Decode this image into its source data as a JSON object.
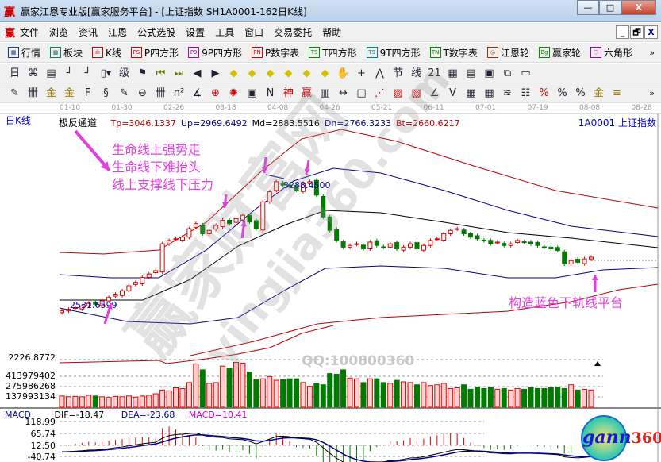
{
  "window": {
    "logo": "赢",
    "title": "赢家江恩专业版[赢家服务平台] - [上证指数  SH1A0001-162日K线]",
    "min": "—",
    "max": "□",
    "close": "X"
  },
  "menu": {
    "logo": "赢",
    "items": [
      "文件",
      "浏览",
      "资讯",
      "江恩",
      "公式选股",
      "设置",
      "工具",
      "窗口",
      "交易委托",
      "帮助"
    ],
    "mdi": [
      "_",
      "🗗",
      "X"
    ]
  },
  "toolbar1": {
    "items": [
      {
        "icon": "quote-table-icon",
        "badge": "▦",
        "label": "行情",
        "color": "#1a3a8a"
      },
      {
        "icon": "sector-icon",
        "badge": "▩",
        "label": "板块",
        "color": "#0a7a6a"
      },
      {
        "icon": "kline-icon",
        "badge": "ılı",
        "label": "K线",
        "color": "#c00"
      },
      {
        "icon": "ps-icon",
        "badge": "PS",
        "label": "P四方形",
        "color": "#c00"
      },
      {
        "icon": "p9-icon",
        "badge": "P9",
        "label": "9P四方形",
        "color": "#a0a"
      },
      {
        "icon": "pn-icon",
        "badge": "PN",
        "label": "P数字表",
        "color": "#c00"
      },
      {
        "icon": "ts-icon",
        "badge": "TS",
        "label": "T四方形",
        "color": "#080"
      },
      {
        "icon": "t9-icon",
        "badge": "T9",
        "label": "9T四方形",
        "color": "#088"
      },
      {
        "icon": "tn-icon",
        "badge": "TN",
        "label": "T数字表",
        "color": "#080"
      },
      {
        "icon": "gann-wheel-icon",
        "badge": "◎",
        "label": "江恩轮",
        "color": "#8a3a00"
      },
      {
        "icon": "winner-wheel-icon",
        "badge": "Bg",
        "label": "赢家轮",
        "color": "#080"
      },
      {
        "icon": "hexagon-icon",
        "badge": "⬡",
        "label": "六角形",
        "color": "#a0a"
      }
    ],
    "more": "»"
  },
  "toolbar2": {
    "items": [
      {
        "icon": "period-day-icon",
        "glyph": "日▾"
      },
      {
        "icon": "overlay-icon",
        "glyph": "⌘"
      },
      {
        "icon": "note-icon",
        "glyph": "▤"
      },
      {
        "icon": "indicator3-icon",
        "glyph": "┘"
      },
      {
        "icon": "indicator9-icon",
        "glyph": "┘"
      },
      {
        "icon": "candle-type-icon",
        "glyph": "▯▾"
      },
      {
        "icon": "extreme-icon",
        "glyph": "级"
      },
      {
        "icon": "flag-icon",
        "glyph": "⚑"
      },
      {
        "icon": "first-icon",
        "glyph": "⏮"
      },
      {
        "icon": "last-icon",
        "glyph": "⏭"
      },
      {
        "icon": "left-icon",
        "glyph": "◀"
      },
      {
        "icon": "right-icon",
        "glyph": "▶"
      },
      {
        "icon": "move-left-icon",
        "glyph": "◆"
      },
      {
        "icon": "move-right-icon",
        "glyph": "◆"
      },
      {
        "icon": "expand-icon",
        "glyph": "◆"
      },
      {
        "icon": "shrink-icon",
        "glyph": "◆"
      },
      {
        "icon": "zoom-in-icon",
        "glyph": "◆"
      },
      {
        "icon": "zoom-out-icon",
        "glyph": "◆"
      },
      {
        "icon": "hand-icon",
        "glyph": "✋"
      },
      {
        "icon": "crosshair-icon",
        "glyph": "+"
      },
      {
        "icon": "line-icon",
        "glyph": "⋀"
      },
      {
        "icon": "festival-icon",
        "glyph": "节"
      },
      {
        "icon": "zone-icon",
        "glyph": "线"
      },
      {
        "icon": "calendar-icon",
        "glyph": "21"
      },
      {
        "icon": "calculator-icon",
        "glyph": "▦"
      },
      {
        "icon": "document-icon",
        "glyph": "▤"
      },
      {
        "icon": "save-icon",
        "glyph": "▣"
      },
      {
        "icon": "network-icon",
        "glyph": "⧉"
      },
      {
        "icon": "computer-icon",
        "glyph": "▭"
      }
    ]
  },
  "toolbar3": {
    "items": [
      {
        "icon": "pen-icon",
        "glyph": "✎"
      },
      {
        "icon": "grid-icon",
        "glyph": "卌"
      },
      {
        "icon": "gold-icon",
        "glyph": "金"
      },
      {
        "icon": "gold2-icon",
        "glyph": "金"
      },
      {
        "icon": "f-icon",
        "glyph": "F"
      },
      {
        "icon": "spiral-icon",
        "glyph": "§"
      },
      {
        "icon": "pen2-icon",
        "glyph": "✎"
      },
      {
        "icon": "circle-icon",
        "glyph": "⊖"
      },
      {
        "icon": "grid2-icon",
        "glyph": "卌"
      },
      {
        "icon": "n2-icon",
        "glyph": "n²"
      },
      {
        "icon": "angle-icon",
        "glyph": "∡"
      },
      {
        "icon": "target-icon",
        "glyph": "⊕"
      },
      {
        "icon": "radar-icon",
        "glyph": "✺"
      },
      {
        "icon": "box-icon",
        "glyph": "▣"
      },
      {
        "icon": "n-line-icon",
        "glyph": "N"
      },
      {
        "icon": "god-icon",
        "glyph": "神"
      },
      {
        "icon": "win-icon",
        "glyph": "赢"
      },
      {
        "icon": "ruler-icon",
        "glyph": "▥"
      },
      {
        "icon": "width-icon",
        "glyph": "↔"
      },
      {
        "icon": "box2-icon",
        "glyph": "□"
      },
      {
        "icon": "fan-icon",
        "glyph": "⋰"
      },
      {
        "icon": "square-fan-icon",
        "glyph": "▨"
      },
      {
        "icon": "square-fan2-icon",
        "glyph": "▧"
      },
      {
        "icon": "angle2-icon",
        "glyph": "∠"
      },
      {
        "icon": "v-icon",
        "glyph": "V"
      },
      {
        "icon": "grid3-icon",
        "glyph": "▦"
      },
      {
        "icon": "grid4-icon",
        "glyph": "▦"
      },
      {
        "icon": "parallel-icon",
        "glyph": "≋"
      },
      {
        "icon": "table-icon",
        "glyph": "☷"
      },
      {
        "icon": "percent-line-icon",
        "glyph": "%"
      },
      {
        "icon": "percent-icon",
        "glyph": "%"
      },
      {
        "icon": "percent2-icon",
        "glyph": "%"
      },
      {
        "icon": "coin-icon",
        "glyph": "金"
      },
      {
        "icon": "gold-lines-icon",
        "glyph": "≡"
      }
    ],
    "more": "»"
  },
  "chart": {
    "period_label": "日K线",
    "dates": [
      "01-10",
      "01-30",
      "02-26",
      "03-18",
      "04-08",
      "04-26",
      "05-21",
      "06-11",
      "07-01",
      "07-19",
      "08-08",
      "08-28"
    ],
    "indicator_name": "极反通道",
    "indicator_values": [
      {
        "text": "Tp=3046.1337",
        "color": "#c00000"
      },
      {
        "text": "Up=2969.6492",
        "color": "#00008b"
      },
      {
        "text": "Md=2883.5516",
        "color": "#000000"
      },
      {
        "text": "Dn=2766.3233",
        "color": "#00008b"
      },
      {
        "text": "Bt=2660.6217",
        "color": "#c00000"
      }
    ],
    "security": "1A0001  上证指数",
    "high_label": "3288.4500",
    "low_label": "2531.6599",
    "low_axis_label": "2226.8772",
    "annotation_lines": [
      "生命线上强势走",
      "生命线下难抬头",
      "线上支撑线下压力"
    ],
    "annotation_bottom": "构造蓝色下轨线平台",
    "annotation_color": "#e040e0"
  },
  "volume": {
    "axis": [
      "413979402",
      "275986268",
      "137993134"
    ]
  },
  "macd": {
    "name": "MACD",
    "dif": "DIF=-18.47",
    "dea": "DEA=-23.68",
    "macd": "MACD=10.41",
    "axis": [
      "118.99",
      "65.74",
      "12.50",
      "-40.74"
    ]
  },
  "watermarks": {
    "site_cn": "赢家财富网",
    "site_url": "yingjia360.com",
    "qq": "QQ:100800360",
    "logo": "gann360"
  },
  "chart_data": {
    "type": "candlestick",
    "closes": [
      2500,
      2510,
      2520,
      2530,
      2545,
      2540,
      2560,
      2580,
      2600,
      2620,
      2650,
      2670,
      2700,
      2720,
      2740,
      2900,
      2920,
      2930,
      2940,
      2990,
      3020,
      2960,
      2980,
      3010,
      3040,
      3020,
      3050,
      3070,
      3030,
      2990,
      3150,
      3210,
      3270,
      3250,
      3240,
      3220,
      3260,
      3270,
      3190,
      3060,
      2980,
      2920,
      2880,
      2890,
      2900,
      2870,
      2910,
      2890,
      2880,
      2900,
      2870,
      2880,
      2900,
      2870,
      2890,
      2920,
      2930,
      2960,
      2980,
      2990,
      2960,
      2940,
      2930,
      2920,
      2900,
      2910,
      2890,
      2900,
      2920,
      2910,
      2900,
      2890,
      2880,
      2870,
      2860,
      2780,
      2800,
      2790,
      2810,
      2820
    ],
    "volumes_million": [
      150,
      140,
      145,
      140,
      160,
      150,
      140,
      130,
      145,
      140,
      150,
      135,
      150,
      160,
      180,
      230,
      220,
      260,
      250,
      330,
      580,
      500,
      320,
      330,
      550,
      520,
      600,
      590,
      470,
      370,
      380,
      410,
      360,
      370,
      380,
      380,
      330,
      280,
      320,
      300,
      450,
      440,
      500,
      390,
      380,
      330,
      380,
      380,
      330,
      320,
      360,
      340,
      330,
      300,
      330,
      290,
      300,
      320,
      250,
      260,
      300,
      240,
      270,
      250,
      260,
      240,
      250,
      230,
      250,
      240,
      260,
      250,
      250,
      260,
      270,
      250,
      300,
      230,
      240,
      230
    ],
    "price_range": [
      2226.8772,
      3400
    ],
    "colors": {
      "up": "#e00000",
      "down": "#007a00",
      "channel_red": "#c00000",
      "channel_blue": "#00008b",
      "middle": "#000000"
    }
  }
}
